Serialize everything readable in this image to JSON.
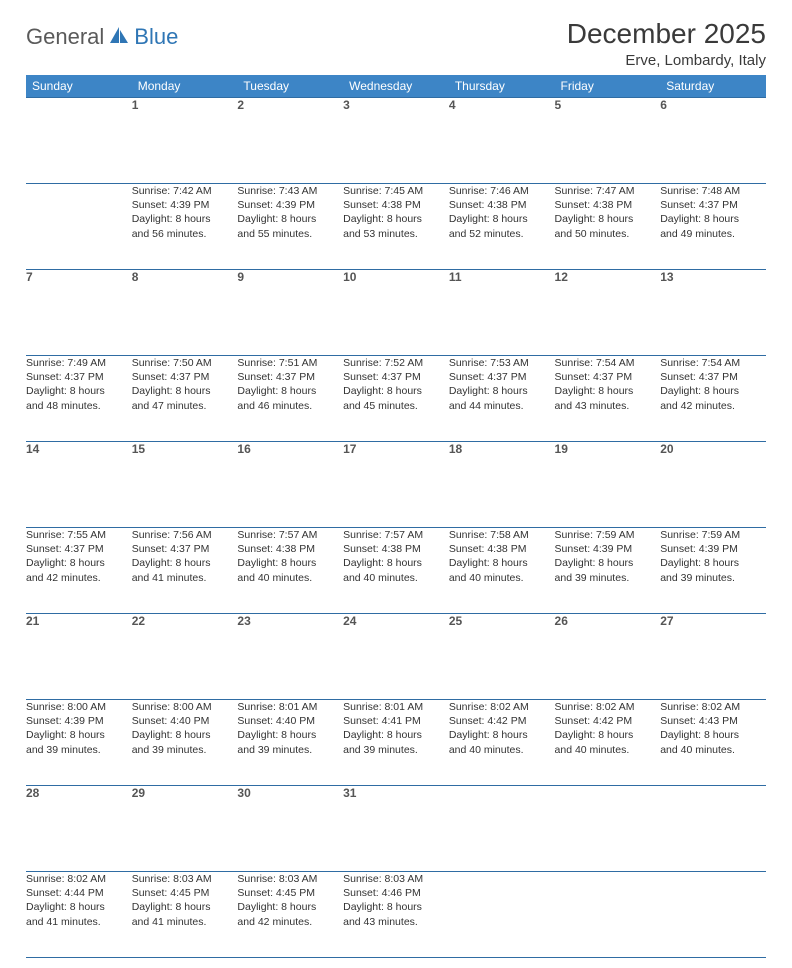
{
  "logo": {
    "part1": "General",
    "part2": "Blue"
  },
  "title": "December 2025",
  "location": "Erve, Lombardy, Italy",
  "colors": {
    "header_bg": "#3d85c6",
    "header_text": "#ffffff",
    "daynum_bg": "#eef0f2",
    "border": "#2f6ca3",
    "logo_gray": "#5a5a5a",
    "logo_blue": "#2f76b5"
  },
  "day_headers": [
    "Sunday",
    "Monday",
    "Tuesday",
    "Wednesday",
    "Thursday",
    "Friday",
    "Saturday"
  ],
  "weeks": [
    {
      "nums": [
        "",
        "1",
        "2",
        "3",
        "4",
        "5",
        "6"
      ],
      "cells": [
        null,
        {
          "sunrise": "Sunrise: 7:42 AM",
          "sunset": "Sunset: 4:39 PM",
          "day1": "Daylight: 8 hours",
          "day2": "and 56 minutes."
        },
        {
          "sunrise": "Sunrise: 7:43 AM",
          "sunset": "Sunset: 4:39 PM",
          "day1": "Daylight: 8 hours",
          "day2": "and 55 minutes."
        },
        {
          "sunrise": "Sunrise: 7:45 AM",
          "sunset": "Sunset: 4:38 PM",
          "day1": "Daylight: 8 hours",
          "day2": "and 53 minutes."
        },
        {
          "sunrise": "Sunrise: 7:46 AM",
          "sunset": "Sunset: 4:38 PM",
          "day1": "Daylight: 8 hours",
          "day2": "and 52 minutes."
        },
        {
          "sunrise": "Sunrise: 7:47 AM",
          "sunset": "Sunset: 4:38 PM",
          "day1": "Daylight: 8 hours",
          "day2": "and 50 minutes."
        },
        {
          "sunrise": "Sunrise: 7:48 AM",
          "sunset": "Sunset: 4:37 PM",
          "day1": "Daylight: 8 hours",
          "day2": "and 49 minutes."
        }
      ]
    },
    {
      "nums": [
        "7",
        "8",
        "9",
        "10",
        "11",
        "12",
        "13"
      ],
      "cells": [
        {
          "sunrise": "Sunrise: 7:49 AM",
          "sunset": "Sunset: 4:37 PM",
          "day1": "Daylight: 8 hours",
          "day2": "and 48 minutes."
        },
        {
          "sunrise": "Sunrise: 7:50 AM",
          "sunset": "Sunset: 4:37 PM",
          "day1": "Daylight: 8 hours",
          "day2": "and 47 minutes."
        },
        {
          "sunrise": "Sunrise: 7:51 AM",
          "sunset": "Sunset: 4:37 PM",
          "day1": "Daylight: 8 hours",
          "day2": "and 46 minutes."
        },
        {
          "sunrise": "Sunrise: 7:52 AM",
          "sunset": "Sunset: 4:37 PM",
          "day1": "Daylight: 8 hours",
          "day2": "and 45 minutes."
        },
        {
          "sunrise": "Sunrise: 7:53 AM",
          "sunset": "Sunset: 4:37 PM",
          "day1": "Daylight: 8 hours",
          "day2": "and 44 minutes."
        },
        {
          "sunrise": "Sunrise: 7:54 AM",
          "sunset": "Sunset: 4:37 PM",
          "day1": "Daylight: 8 hours",
          "day2": "and 43 minutes."
        },
        {
          "sunrise": "Sunrise: 7:54 AM",
          "sunset": "Sunset: 4:37 PM",
          "day1": "Daylight: 8 hours",
          "day2": "and 42 minutes."
        }
      ]
    },
    {
      "nums": [
        "14",
        "15",
        "16",
        "17",
        "18",
        "19",
        "20"
      ],
      "cells": [
        {
          "sunrise": "Sunrise: 7:55 AM",
          "sunset": "Sunset: 4:37 PM",
          "day1": "Daylight: 8 hours",
          "day2": "and 42 minutes."
        },
        {
          "sunrise": "Sunrise: 7:56 AM",
          "sunset": "Sunset: 4:37 PM",
          "day1": "Daylight: 8 hours",
          "day2": "and 41 minutes."
        },
        {
          "sunrise": "Sunrise: 7:57 AM",
          "sunset": "Sunset: 4:38 PM",
          "day1": "Daylight: 8 hours",
          "day2": "and 40 minutes."
        },
        {
          "sunrise": "Sunrise: 7:57 AM",
          "sunset": "Sunset: 4:38 PM",
          "day1": "Daylight: 8 hours",
          "day2": "and 40 minutes."
        },
        {
          "sunrise": "Sunrise: 7:58 AM",
          "sunset": "Sunset: 4:38 PM",
          "day1": "Daylight: 8 hours",
          "day2": "and 40 minutes."
        },
        {
          "sunrise": "Sunrise: 7:59 AM",
          "sunset": "Sunset: 4:39 PM",
          "day1": "Daylight: 8 hours",
          "day2": "and 39 minutes."
        },
        {
          "sunrise": "Sunrise: 7:59 AM",
          "sunset": "Sunset: 4:39 PM",
          "day1": "Daylight: 8 hours",
          "day2": "and 39 minutes."
        }
      ]
    },
    {
      "nums": [
        "21",
        "22",
        "23",
        "24",
        "25",
        "26",
        "27"
      ],
      "cells": [
        {
          "sunrise": "Sunrise: 8:00 AM",
          "sunset": "Sunset: 4:39 PM",
          "day1": "Daylight: 8 hours",
          "day2": "and 39 minutes."
        },
        {
          "sunrise": "Sunrise: 8:00 AM",
          "sunset": "Sunset: 4:40 PM",
          "day1": "Daylight: 8 hours",
          "day2": "and 39 minutes."
        },
        {
          "sunrise": "Sunrise: 8:01 AM",
          "sunset": "Sunset: 4:40 PM",
          "day1": "Daylight: 8 hours",
          "day2": "and 39 minutes."
        },
        {
          "sunrise": "Sunrise: 8:01 AM",
          "sunset": "Sunset: 4:41 PM",
          "day1": "Daylight: 8 hours",
          "day2": "and 39 minutes."
        },
        {
          "sunrise": "Sunrise: 8:02 AM",
          "sunset": "Sunset: 4:42 PM",
          "day1": "Daylight: 8 hours",
          "day2": "and 40 minutes."
        },
        {
          "sunrise": "Sunrise: 8:02 AM",
          "sunset": "Sunset: 4:42 PM",
          "day1": "Daylight: 8 hours",
          "day2": "and 40 minutes."
        },
        {
          "sunrise": "Sunrise: 8:02 AM",
          "sunset": "Sunset: 4:43 PM",
          "day1": "Daylight: 8 hours",
          "day2": "and 40 minutes."
        }
      ]
    },
    {
      "nums": [
        "28",
        "29",
        "30",
        "31",
        "",
        "",
        ""
      ],
      "cells": [
        {
          "sunrise": "Sunrise: 8:02 AM",
          "sunset": "Sunset: 4:44 PM",
          "day1": "Daylight: 8 hours",
          "day2": "and 41 minutes."
        },
        {
          "sunrise": "Sunrise: 8:03 AM",
          "sunset": "Sunset: 4:45 PM",
          "day1": "Daylight: 8 hours",
          "day2": "and 41 minutes."
        },
        {
          "sunrise": "Sunrise: 8:03 AM",
          "sunset": "Sunset: 4:45 PM",
          "day1": "Daylight: 8 hours",
          "day2": "and 42 minutes."
        },
        {
          "sunrise": "Sunrise: 8:03 AM",
          "sunset": "Sunset: 4:46 PM",
          "day1": "Daylight: 8 hours",
          "day2": "and 43 minutes."
        },
        null,
        null,
        null
      ]
    }
  ]
}
